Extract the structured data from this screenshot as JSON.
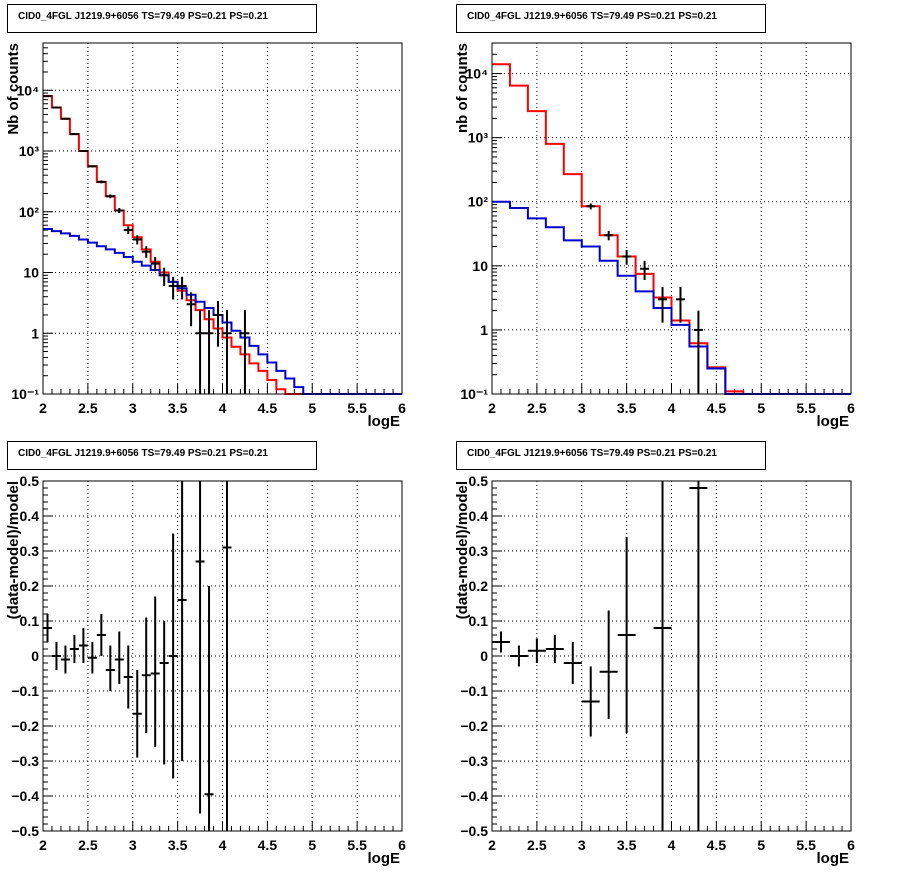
{
  "panels": [
    {
      "title": "CID0_4FGL J1219.9+6056 TS=79.49 PS=0.21 PS=0.21",
      "chart_data": {
        "type": "histogram",
        "xlabel": "logE",
        "ylabel": "Nb of counts",
        "xlim": [
          2,
          6
        ],
        "ylim": [
          0.1,
          60000
        ],
        "yscale": "log",
        "xticks": [
          2,
          2.5,
          3,
          3.5,
          4,
          4.5,
          5,
          5.5,
          6
        ],
        "xticklabels": [
          "2",
          "2.5",
          "3",
          "3.5",
          "4",
          "4.5",
          "5",
          "5.5",
          "6"
        ],
        "yticks": [
          0.1,
          1,
          10,
          100,
          1000,
          10000
        ],
        "yticklabels": [
          "10⁻¹",
          "1",
          "10",
          "10²",
          "10³",
          "10⁴"
        ],
        "grid": true,
        "bin_edges": [
          2,
          2.1,
          2.2,
          2.3,
          2.4,
          2.5,
          2.6,
          2.7,
          2.8,
          2.9,
          3,
          3.1,
          3.2,
          3.3,
          3.4,
          3.5,
          3.6,
          3.7,
          3.8,
          3.9,
          4,
          4.1,
          4.2,
          4.3,
          4.4,
          4.5,
          4.6,
          4.7,
          4.8,
          4.9,
          5,
          5.1,
          5.2,
          5.3,
          5.4,
          5.5,
          5.6,
          5.7,
          5.8,
          5.9,
          6
        ],
        "series": [
          {
            "color": "#ff0000",
            "style": "step",
            "values": [
              8000,
              5200,
              3400,
              1900,
              1000,
              560,
              310,
              180,
              105,
              60,
              38,
              24,
              15,
              10,
              7,
              5,
              3.5,
              2.4,
              1.7,
              1.2,
              0.85,
              0.6,
              0.45,
              0.32,
              0.24,
              0.17,
              0.12,
              0.1,
              0.1,
              0.1,
              0.1,
              0.1,
              0.1,
              0.1,
              0.1,
              0.1,
              0.1,
              0.1,
              0.1,
              0.1
            ]
          },
          {
            "color": "#0000cc",
            "style": "step",
            "values": [
              52,
              48,
              44,
              40,
              35,
              31,
              27,
              24,
              21,
              18,
              15,
              13,
              11,
              9,
              7,
              5.5,
              4.3,
              3.3,
              2.6,
              2,
              1.5,
              1.1,
              0.85,
              0.62,
              0.45,
              0.33,
              0.24,
              0.18,
              0.13,
              0.1,
              0.1,
              0.1,
              0.1,
              0.1,
              0.1,
              0.1,
              0.1,
              0.1,
              0.1,
              0.1
            ]
          }
        ],
        "points": [
          {
            "x": 2.05,
            "y": 8000,
            "lo": 7900,
            "hi": 8100
          },
          {
            "x": 2.15,
            "y": 5200,
            "lo": 5120,
            "hi": 5280
          },
          {
            "x": 2.25,
            "y": 3400,
            "lo": 3340,
            "hi": 3460
          },
          {
            "x": 2.35,
            "y": 1900,
            "lo": 1860,
            "hi": 1940
          },
          {
            "x": 2.45,
            "y": 1000,
            "lo": 970,
            "hi": 1030
          },
          {
            "x": 2.55,
            "y": 560,
            "lo": 540,
            "hi": 580
          },
          {
            "x": 2.65,
            "y": 310,
            "lo": 293,
            "hi": 328
          },
          {
            "x": 2.75,
            "y": 180,
            "lo": 167,
            "hi": 193
          },
          {
            "x": 2.85,
            "y": 105,
            "lo": 95,
            "hi": 115
          },
          {
            "x": 2.95,
            "y": 50,
            "lo": 43,
            "hi": 57
          },
          {
            "x": 3.05,
            "y": 35,
            "lo": 29,
            "hi": 41
          },
          {
            "x": 3.15,
            "y": 22,
            "lo": 17.5,
            "hi": 27
          },
          {
            "x": 3.25,
            "y": 14,
            "lo": 10.5,
            "hi": 18
          },
          {
            "x": 3.35,
            "y": 9,
            "lo": 6,
            "hi": 12
          },
          {
            "x": 3.45,
            "y": 6,
            "lo": 3.6,
            "hi": 8.5
          },
          {
            "x": 3.55,
            "y": 6,
            "lo": 3.6,
            "hi": 8.5
          },
          {
            "x": 3.65,
            "y": 3,
            "lo": 1.3,
            "hi": 4.7
          },
          {
            "x": 3.75,
            "y": 1,
            "lo": 0.1,
            "hi": 2.4
          },
          {
            "x": 3.85,
            "y": 1,
            "lo": 0.1,
            "hi": 2.4
          },
          {
            "x": 3.95,
            "y": 2,
            "lo": 0.6,
            "hi": 3.4
          },
          {
            "x": 4.05,
            "y": 1,
            "lo": 0.1,
            "hi": 2.4
          },
          {
            "x": 4.25,
            "y": 1,
            "lo": 0.1,
            "hi": 2.4
          }
        ]
      }
    },
    {
      "title": "CID0_4FGL J1219.9+6056 TS=79.49 PS=0.21 PS=0.21",
      "chart_data": {
        "type": "histogram",
        "xlabel": "logE",
        "ylabel": "nb of counts",
        "xlim": [
          2,
          6
        ],
        "ylim": [
          0.1,
          30000
        ],
        "yscale": "log",
        "xticks": [
          2,
          2.5,
          3,
          3.5,
          4,
          4.5,
          5,
          5.5,
          6
        ],
        "xticklabels": [
          "2",
          "2.5",
          "3",
          "3.5",
          "4",
          "4.5",
          "5",
          "5.5",
          "6"
        ],
        "yticks": [
          0.1,
          1,
          10,
          100,
          1000,
          10000
        ],
        "yticklabels": [
          "10⁻¹",
          "1",
          "10",
          "10²",
          "10³",
          "10⁴"
        ],
        "grid": true,
        "bin_edges": [
          2,
          2.2,
          2.4,
          2.6,
          2.8,
          3,
          3.2,
          3.4,
          3.6,
          3.8,
          4,
          4.2,
          4.4,
          4.6,
          4.8,
          5,
          5.2,
          5.4,
          5.6,
          5.8,
          6
        ],
        "series": [
          {
            "color": "#ff0000",
            "style": "step",
            "values": [
              14000,
              6500,
              2600,
              800,
              270,
              85,
              30,
              14,
              7.5,
              3.2,
              1.4,
              0.62,
              0.26,
              0.11,
              0.1,
              0.1,
              0.1,
              0.1,
              0.1,
              0.1
            ]
          },
          {
            "color": "#0000cc",
            "style": "step",
            "values": [
              100,
              80,
              55,
              40,
              25,
              20,
              12,
              7,
              4,
              2.2,
              1.2,
              0.55,
              0.25,
              0.1,
              0.1,
              0.1,
              0.1,
              0.1,
              0.1,
              0.1
            ]
          }
        ],
        "points": [
          {
            "x": 3.1,
            "y": 85,
            "lo": 76,
            "hi": 94
          },
          {
            "x": 3.3,
            "y": 30,
            "lo": 25,
            "hi": 35
          },
          {
            "x": 3.5,
            "y": 14,
            "lo": 10.4,
            "hi": 17.6
          },
          {
            "x": 3.7,
            "y": 9,
            "lo": 6,
            "hi": 12
          },
          {
            "x": 3.9,
            "y": 3,
            "lo": 1.3,
            "hi": 4.7
          },
          {
            "x": 4.1,
            "y": 3,
            "lo": 1.3,
            "hi": 4.7
          },
          {
            "x": 4.3,
            "y": 1,
            "lo": 0.1,
            "hi": 2
          }
        ]
      }
    },
    {
      "title": "CID0_4FGL J1219.9+6056 TS=79.49 PS=0.21 PS=0.21",
      "chart_data": {
        "type": "scatter",
        "xlabel": "logE",
        "ylabel": "(data-model)/model",
        "xlim": [
          2,
          6
        ],
        "ylim": [
          -0.5,
          0.5
        ],
        "yscale": "linear",
        "xticks": [
          2,
          2.5,
          3,
          3.5,
          4,
          4.5,
          5,
          5.5,
          6
        ],
        "xticklabels": [
          "2",
          "2.5",
          "3",
          "3.5",
          "4",
          "4.5",
          "5",
          "5.5",
          "6"
        ],
        "yticks": [
          -0.5,
          -0.4,
          -0.3,
          -0.2,
          -0.1,
          0,
          0.1,
          0.2,
          0.3,
          0.4,
          0.5
        ],
        "yticklabels": [
          "−0.5",
          "−0.4",
          "−0.3",
          "−0.2",
          "−0.1",
          "0",
          "0.1",
          "0.2",
          "0.3",
          "0.4",
          "0.5"
        ],
        "grid": true,
        "xerr": 0.05,
        "points": [
          {
            "x": 2.05,
            "y": 0.08,
            "lo": 0.04,
            "hi": 0.12
          },
          {
            "x": 2.15,
            "y": 0.0,
            "lo": -0.04,
            "hi": 0.04
          },
          {
            "x": 2.25,
            "y": -0.01,
            "lo": -0.05,
            "hi": 0.03
          },
          {
            "x": 2.35,
            "y": 0.02,
            "lo": -0.02,
            "hi": 0.06
          },
          {
            "x": 2.45,
            "y": 0.03,
            "lo": -0.02,
            "hi": 0.08
          },
          {
            "x": 2.55,
            "y": -0.005,
            "lo": -0.05,
            "hi": 0.04
          },
          {
            "x": 2.65,
            "y": 0.06,
            "lo": 0.0,
            "hi": 0.12
          },
          {
            "x": 2.75,
            "y": -0.04,
            "lo": -0.1,
            "hi": 0.03
          },
          {
            "x": 2.85,
            "y": -0.01,
            "lo": -0.08,
            "hi": 0.07
          },
          {
            "x": 2.95,
            "y": -0.06,
            "lo": -0.15,
            "hi": 0.03
          },
          {
            "x": 3.05,
            "y": -0.165,
            "lo": -0.29,
            "hi": -0.04
          },
          {
            "x": 3.15,
            "y": -0.055,
            "lo": -0.22,
            "hi": 0.11
          },
          {
            "x": 3.25,
            "y": -0.05,
            "lo": -0.26,
            "hi": 0.17
          },
          {
            "x": 3.35,
            "y": -0.02,
            "lo": -0.31,
            "hi": 0.1
          },
          {
            "x": 3.45,
            "y": 0.0,
            "lo": -0.35,
            "hi": 0.35
          },
          {
            "x": 3.55,
            "y": 0.16,
            "lo": -0.3,
            "hi": 0.5
          },
          {
            "x": 3.75,
            "y": 0.27,
            "lo": -0.45,
            "hi": 0.5
          },
          {
            "x": 3.85,
            "y": -0.395,
            "lo": -0.5,
            "hi": 0.2
          },
          {
            "x": 4.05,
            "y": 0.31,
            "lo": -0.5,
            "hi": 0.5
          }
        ]
      }
    },
    {
      "title": "CID0_4FGL J1219.9+6056 TS=79.49 PS=0.21 PS=0.21",
      "chart_data": {
        "type": "scatter",
        "xlabel": "logE",
        "ylabel": "(data-model)/model",
        "xlim": [
          2,
          6
        ],
        "ylim": [
          -0.5,
          0.5
        ],
        "yscale": "linear",
        "xticks": [
          2,
          2.5,
          3,
          3.5,
          4,
          4.5,
          5,
          5.5,
          6
        ],
        "xticklabels": [
          "2",
          "2.5",
          "3",
          "3.5",
          "4",
          "4.5",
          "5",
          "5.5",
          "6"
        ],
        "yticks": [
          -0.5,
          -0.4,
          -0.3,
          -0.2,
          -0.1,
          0,
          0.1,
          0.2,
          0.3,
          0.4,
          0.5
        ],
        "yticklabels": [
          "−0.5",
          "−0.4",
          "−0.3",
          "−0.2",
          "−0.1",
          "0",
          "0.1",
          "0.2",
          "0.3",
          "0.4",
          "0.5"
        ],
        "grid": true,
        "xerr": 0.1,
        "points": [
          {
            "x": 2.1,
            "y": 0.04,
            "lo": 0.01,
            "hi": 0.07
          },
          {
            "x": 2.3,
            "y": 0.0,
            "lo": -0.03,
            "hi": 0.03
          },
          {
            "x": 2.5,
            "y": 0.015,
            "lo": -0.02,
            "hi": 0.05
          },
          {
            "x": 2.7,
            "y": 0.02,
            "lo": -0.02,
            "hi": 0.06
          },
          {
            "x": 2.9,
            "y": -0.02,
            "lo": -0.08,
            "hi": 0.04
          },
          {
            "x": 3.1,
            "y": -0.13,
            "lo": -0.23,
            "hi": -0.03
          },
          {
            "x": 3.3,
            "y": -0.045,
            "lo": -0.18,
            "hi": 0.13
          },
          {
            "x": 3.5,
            "y": 0.06,
            "lo": -0.22,
            "hi": 0.34
          },
          {
            "x": 3.9,
            "y": 0.08,
            "lo": -0.5,
            "hi": 0.5
          },
          {
            "x": 4.3,
            "y": 0.48,
            "lo": -0.5,
            "hi": 0.5
          }
        ]
      }
    }
  ]
}
